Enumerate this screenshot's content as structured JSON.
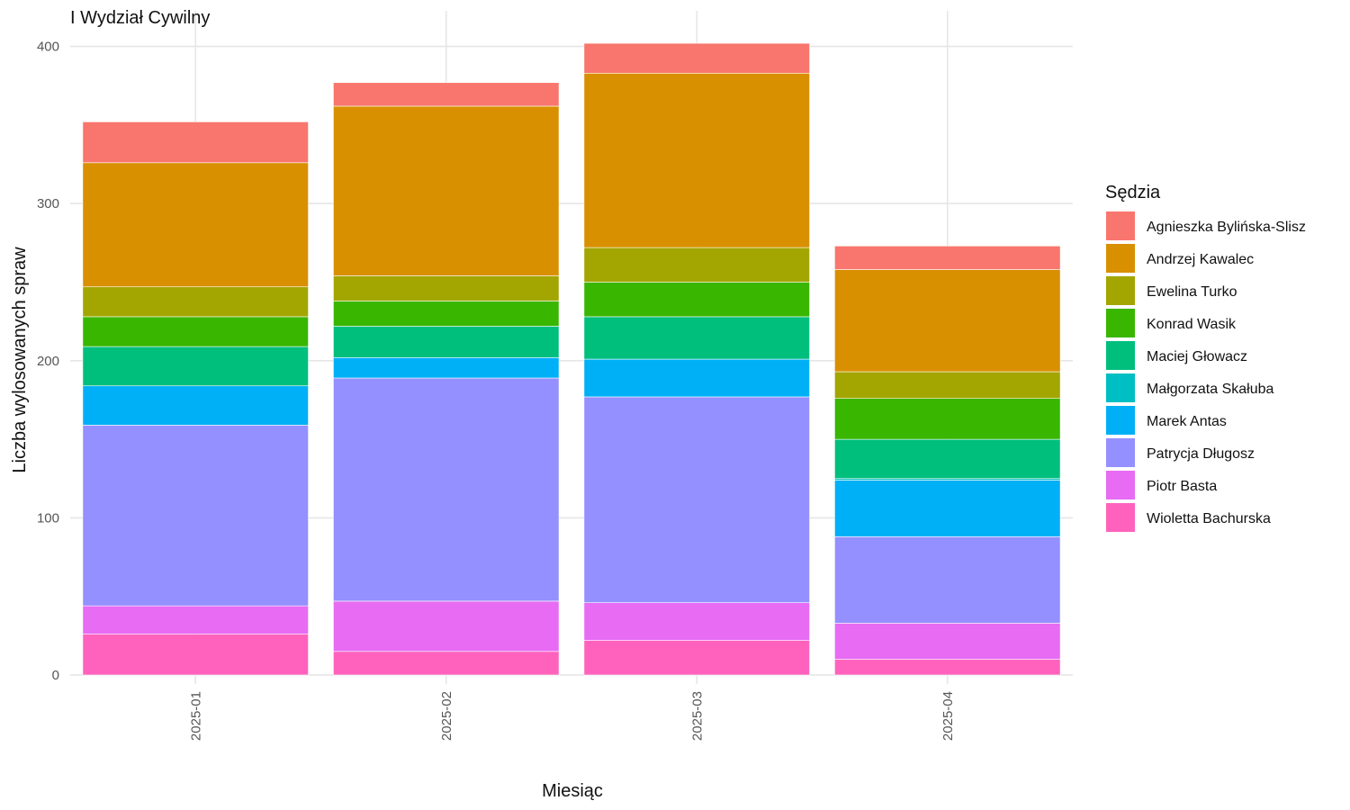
{
  "chart_data": {
    "type": "bar",
    "stacked": true,
    "title": "I Wydział Cywilny",
    "xlabel": "Miesiąc",
    "ylabel": "Liczba wylosowanych spraw",
    "ylim": [
      0,
      422
    ],
    "yticks": [
      0,
      100,
      200,
      300,
      400
    ],
    "grid": true,
    "legend_title": "Sędzia",
    "legend_position": "right",
    "categories": [
      "2025-01",
      "2025-02",
      "2025-03",
      "2025-04"
    ],
    "series": [
      {
        "name": "Agnieszka Bylińska-Slisz",
        "color": "#F8766D",
        "values": [
          26,
          15,
          19,
          15
        ]
      },
      {
        "name": "Andrzej Kawalec",
        "color": "#D89000",
        "values": [
          79,
          108,
          111,
          65
        ]
      },
      {
        "name": "Ewelina Turko",
        "color": "#A3A500",
        "values": [
          19,
          16,
          22,
          17
        ]
      },
      {
        "name": "Konrad Wasik",
        "color": "#39B600",
        "values": [
          19,
          16,
          22,
          26
        ]
      },
      {
        "name": "Maciej Głowacz",
        "color": "#00BF7D",
        "values": [
          25,
          20,
          27,
          25
        ]
      },
      {
        "name": "Małgorzata Skałuba",
        "color": "#00BFC4",
        "values": [
          0,
          0,
          0,
          1
        ]
      },
      {
        "name": "Marek Antas",
        "color": "#00B0F6",
        "values": [
          25,
          13,
          24,
          36
        ]
      },
      {
        "name": "Patrycja Długosz",
        "color": "#9590FF",
        "values": [
          115,
          142,
          131,
          55
        ]
      },
      {
        "name": "Piotr Basta",
        "color": "#E76BF3",
        "values": [
          18,
          32,
          24,
          23
        ]
      },
      {
        "name": "Wioletta Bachurska",
        "color": "#FF62BC",
        "values": [
          26,
          15,
          22,
          10
        ]
      }
    ]
  }
}
